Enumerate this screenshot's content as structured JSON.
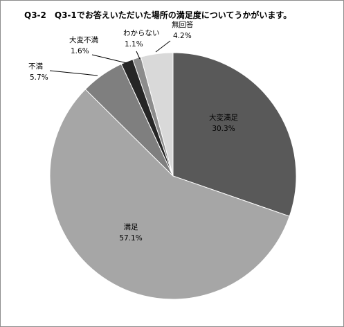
{
  "chart_data": {
    "type": "pie",
    "title": "Q3-2　Q3-1でお答えいただいた場所の満足度についてうかがいます。",
    "start_angle_deg": 0,
    "direction": "clockwise",
    "slices": [
      {
        "label": "大変満足",
        "value": 30.3,
        "value_text": "30.3%",
        "color": "#595959",
        "label_color": "#000000"
      },
      {
        "label": "満足",
        "value": 57.1,
        "value_text": "57.1%",
        "color": "#a6a6a6",
        "label_color": "#000000"
      },
      {
        "label": "不満",
        "value": 5.7,
        "value_text": "5.7%",
        "color": "#7f7f7f",
        "label_color": "#000000"
      },
      {
        "label": "大変不満",
        "value": 1.6,
        "value_text": "1.6%",
        "color": "#262626",
        "label_color": "#000000"
      },
      {
        "label": "わからない",
        "value": 1.1,
        "value_text": "1.1%",
        "color": "#8c8c8c",
        "label_color": "#000000"
      },
      {
        "label": "無回答",
        "value": 4.2,
        "value_text": "4.2%",
        "color": "#d9d9d9",
        "label_color": "#000000"
      }
    ],
    "legend": "none",
    "labels": "category and percentage, with leader lines for small slices"
  }
}
